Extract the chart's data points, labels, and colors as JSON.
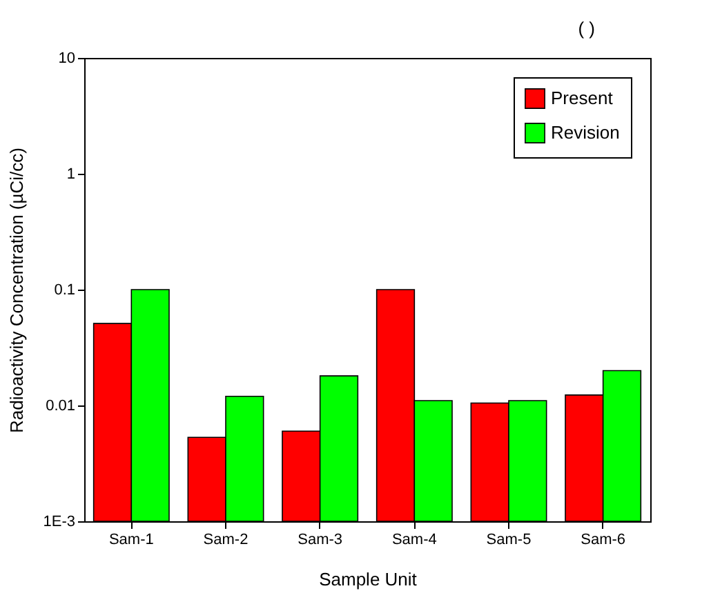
{
  "chart_data": {
    "type": "bar",
    "xlabel": "Sample Unit",
    "ylabel": "Radioactivity Concentration (µCi/cc)",
    "annotations": [
      "(      )"
    ],
    "categories": [
      "Sam-1",
      "Sam-2",
      "Sam-3",
      "Sam-4",
      "Sam-5",
      "Sam-6"
    ],
    "series": [
      {
        "name": "Present",
        "color": "#ff0000",
        "values": [
          0.051,
          0.0053,
          0.006,
          0.1,
          0.0105,
          0.0123
        ]
      },
      {
        "name": "Revision",
        "color": "#00ff00",
        "values": [
          0.1,
          0.012,
          0.018,
          0.011,
          0.011,
          0.02
        ]
      }
    ],
    "log": "y",
    "ylim": [
      0.001,
      10
    ],
    "yticks": [
      {
        "value": 0.001,
        "label": "1E-3"
      },
      0.01,
      0.1,
      1,
      10
    ],
    "legend": "top right"
  }
}
